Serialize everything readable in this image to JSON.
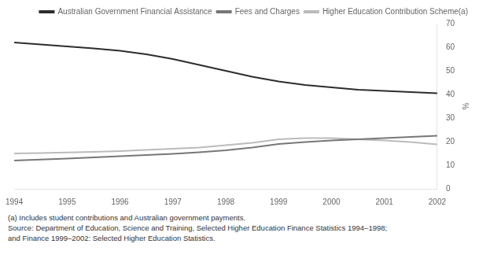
{
  "chart_data": {
    "type": "line",
    "x": [
      1994,
      1994.5,
      1995,
      1995.5,
      1996,
      1996.5,
      1997,
      1997.5,
      1998,
      1998.5,
      1999,
      1999.5,
      2000,
      2000.5,
      2001,
      2001.5,
      2002
    ],
    "series": [
      {
        "name": "Australian Government Financial Assistance",
        "color": "#2d2d2d",
        "values": [
          62,
          61.2,
          60.3,
          59.5,
          58.5,
          57.0,
          55.0,
          52.5,
          50.0,
          47.5,
          45.5,
          44.0,
          43.0,
          42.0,
          41.5,
          41.0,
          40.5
        ]
      },
      {
        "name": "Fees and Charges",
        "color": "#777777",
        "values": [
          12.0,
          12.4,
          12.8,
          13.3,
          13.8,
          14.3,
          14.8,
          15.5,
          16.3,
          17.5,
          19.0,
          19.8,
          20.5,
          21.0,
          21.5,
          22.0,
          22.5
        ]
      },
      {
        "name": "Higher Education Contribution Scheme(a)",
        "color": "#bbbbbb",
        "values": [
          15.0,
          15.2,
          15.4,
          15.7,
          16.0,
          16.5,
          17.0,
          17.5,
          18.5,
          19.5,
          21.0,
          21.5,
          21.5,
          21.0,
          20.5,
          19.8,
          18.8
        ]
      }
    ],
    "xlim": [
      1994,
      2002
    ],
    "xticks": [
      1994,
      1995,
      1996,
      1997,
      1998,
      1999,
      2000,
      2001,
      2002
    ],
    "ylim": [
      0,
      70
    ],
    "yticks": [
      0,
      10,
      20,
      30,
      40,
      50,
      60,
      70
    ],
    "ylabel": "%",
    "legend": "upper right",
    "grid": false,
    "annotations": [
      "(a) Includes student contributions and Australian government payments.",
      "Source: Department of Education, Science and Training, Selected Higher Education Finance Statistics 1994–1998;",
      "and Finance 1999–2002: Selected Higher Education Statistics."
    ]
  }
}
